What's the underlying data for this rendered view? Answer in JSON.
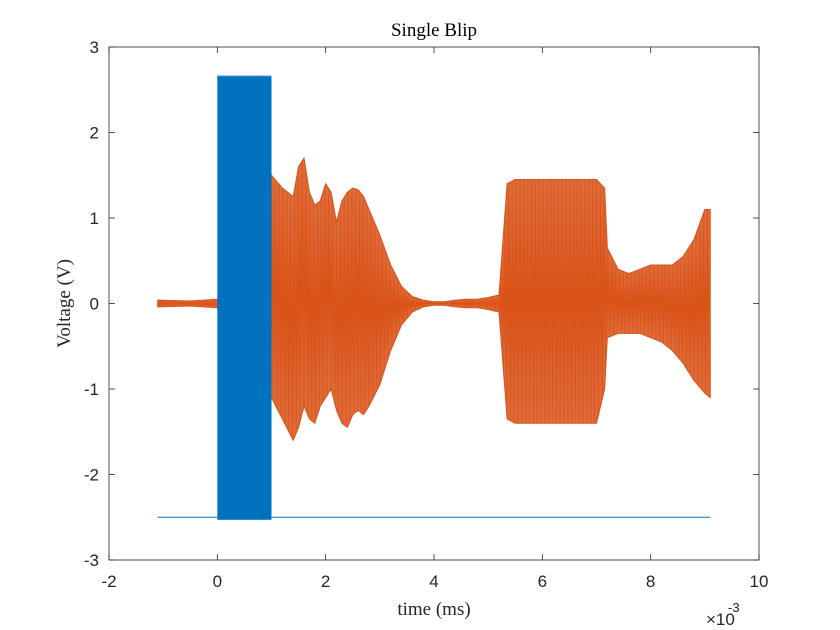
{
  "chart_data": {
    "type": "line",
    "title": "Single Blip",
    "xlabel": "time (ms)",
    "ylabel": "Voltage (V)",
    "x_multiplier": "×10",
    "x_multiplier_exponent": "-3",
    "xlim": [
      -0.002,
      0.01
    ],
    "ylim": [
      -3,
      3
    ],
    "x_ticks": [
      -0.002,
      0,
      0.002,
      0.004,
      0.006,
      0.008,
      0.01
    ],
    "x_tick_labels": [
      "-2",
      "0",
      "2",
      "4",
      "6",
      "8",
      "10"
    ],
    "y_ticks": [
      -3,
      -2,
      -1,
      0,
      1,
      2,
      3
    ],
    "y_tick_labels": [
      "-3",
      "-2",
      "-1",
      "0",
      "1",
      "2",
      "3"
    ],
    "grid": false,
    "legend": "none",
    "series": [
      {
        "color": "#0072BD",
        "segments": [
          {
            "x_start": -0.0011,
            "x_end": 0.0,
            "high": -2.49,
            "low": -2.51
          },
          {
            "x_start": 0.0,
            "x_end": 0.001,
            "high": 2.66,
            "low": -2.53
          },
          {
            "x_start": 0.001,
            "x_end": 0.0091,
            "high": -2.49,
            "low": -2.51
          }
        ]
      },
      {
        "color": "#D95319",
        "envelope_x": [
          -0.0011,
          -0.0005,
          0.0,
          0.0001,
          0.0002,
          0.0003,
          0.0004,
          0.0005,
          0.0006,
          0.0007,
          0.0008,
          0.0009,
          0.001,
          0.0012,
          0.0014,
          0.0015,
          0.0016,
          0.0017,
          0.0018,
          0.0019,
          0.002,
          0.0021,
          0.0022,
          0.0023,
          0.0024,
          0.0025,
          0.0026,
          0.0027,
          0.0028,
          0.003,
          0.0032,
          0.0034,
          0.0036,
          0.0038,
          0.004,
          0.0042,
          0.0044,
          0.0046,
          0.0048,
          0.005,
          0.0052,
          0.00535,
          0.0055,
          0.0056,
          0.0058,
          0.006,
          0.0062,
          0.0064,
          0.0066,
          0.0068,
          0.007,
          0.00715,
          0.0072,
          0.0074,
          0.0076,
          0.0078,
          0.008,
          0.0082,
          0.0084,
          0.0086,
          0.0088,
          0.009,
          0.0091
        ],
        "envelope_upper": [
          0.04,
          0.03,
          0.05,
          0.2,
          0.35,
          1.0,
          1.6,
          2.2,
          2.15,
          2.0,
          1.9,
          1.7,
          1.5,
          1.35,
          1.25,
          1.6,
          1.7,
          1.3,
          1.15,
          1.2,
          1.4,
          1.3,
          0.95,
          1.2,
          1.3,
          1.35,
          1.33,
          1.25,
          1.1,
          0.8,
          0.45,
          0.2,
          0.08,
          0.04,
          0.02,
          0.02,
          0.04,
          0.05,
          0.05,
          0.07,
          0.1,
          1.4,
          1.45,
          1.45,
          1.45,
          1.45,
          1.45,
          1.45,
          1.45,
          1.45,
          1.45,
          1.35,
          0.65,
          0.4,
          0.35,
          0.4,
          0.45,
          0.45,
          0.45,
          0.55,
          0.75,
          1.1,
          1.1
        ],
        "envelope_lower": [
          -0.04,
          -0.03,
          -0.05,
          -0.3,
          -1.6,
          -1.3,
          -0.8,
          -0.9,
          -1.4,
          -1.3,
          -1.0,
          -0.9,
          -1.1,
          -1.35,
          -1.6,
          -1.45,
          -1.2,
          -1.35,
          -1.4,
          -1.2,
          -1.1,
          -1.0,
          -1.25,
          -1.4,
          -1.45,
          -1.3,
          -1.25,
          -1.3,
          -1.2,
          -0.95,
          -0.55,
          -0.25,
          -0.1,
          -0.04,
          -0.02,
          -0.02,
          -0.04,
          -0.05,
          -0.05,
          -0.07,
          -0.1,
          -1.35,
          -1.4,
          -1.4,
          -1.4,
          -1.4,
          -1.4,
          -1.4,
          -1.4,
          -1.4,
          -1.4,
          -1.0,
          -0.4,
          -0.35,
          -0.35,
          -0.35,
          -0.4,
          -0.45,
          -0.55,
          -0.7,
          -0.9,
          -1.05,
          -1.1
        ]
      }
    ]
  }
}
